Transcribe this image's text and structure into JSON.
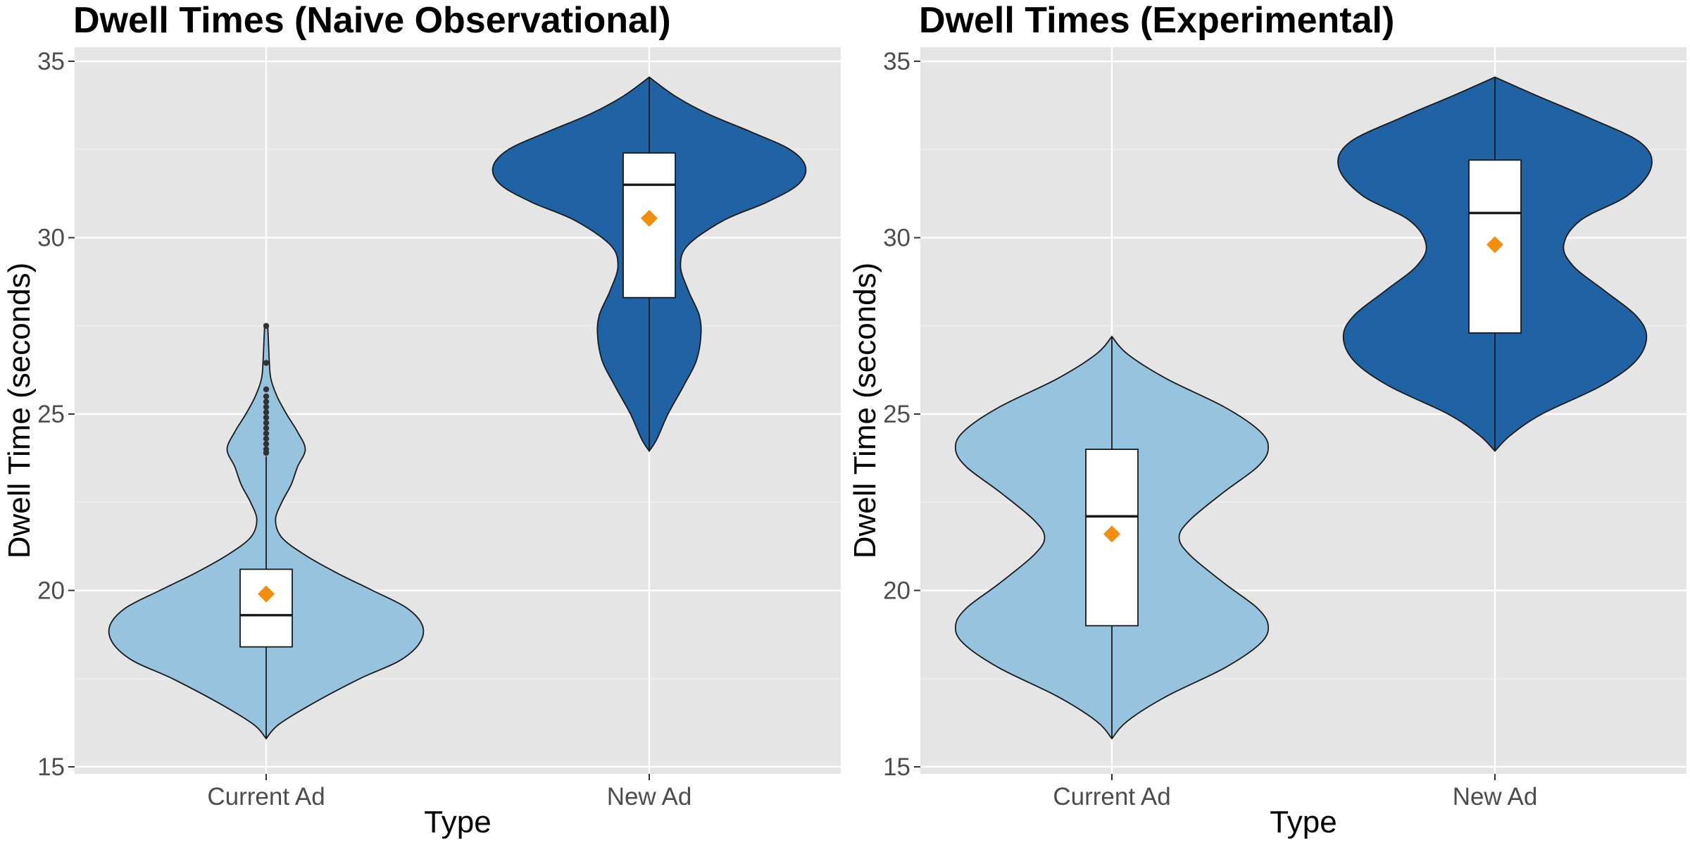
{
  "chart_data": [
    {
      "type": "violin",
      "title": "Dwell Times (Naive Observational)",
      "xlabel": "Type",
      "ylabel": "Dwell Time (seconds)",
      "categories": [
        "Current Ad",
        "New Ad"
      ],
      "ylim": [
        14.8,
        35.4
      ],
      "yticks": [
        15,
        20,
        25,
        30,
        35
      ],
      "grid": true,
      "groups": [
        {
          "category": "Current Ad",
          "fill": "#96c3dd",
          "range": [
            15.8,
            27.5
          ],
          "density": [
            [
              15.8,
              0.0
            ],
            [
              16.2,
              0.08
            ],
            [
              16.8,
              0.3
            ],
            [
              17.5,
              0.6
            ],
            [
              18.0,
              0.85
            ],
            [
              18.5,
              0.98
            ],
            [
              19.0,
              1.0
            ],
            [
              19.5,
              0.9
            ],
            [
              20.0,
              0.68
            ],
            [
              20.5,
              0.45
            ],
            [
              21.0,
              0.25
            ],
            [
              21.5,
              0.1
            ],
            [
              22.0,
              0.06
            ],
            [
              22.5,
              0.1
            ],
            [
              23.0,
              0.16
            ],
            [
              23.5,
              0.2
            ],
            [
              24.0,
              0.25
            ],
            [
              24.5,
              0.2
            ],
            [
              25.0,
              0.13
            ],
            [
              25.5,
              0.07
            ],
            [
              26.0,
              0.03
            ],
            [
              26.5,
              0.02
            ],
            [
              27.0,
              0.015
            ],
            [
              27.5,
              0.01
            ]
          ],
          "box": {
            "q1": 18.4,
            "median": 19.3,
            "q3": 20.6,
            "whisker_low": 15.8,
            "whisker_high": 23.8
          },
          "mean": 19.9,
          "outliers": [
            23.9,
            24.0,
            24.15,
            24.3,
            24.45,
            24.6,
            24.75,
            24.9,
            25.05,
            25.2,
            25.35,
            25.5,
            25.7,
            26.45,
            27.5
          ]
        },
        {
          "category": "New Ad",
          "fill": "#1f63a5",
          "range": [
            23.95,
            34.55
          ],
          "density": [
            [
              23.95,
              0.0
            ],
            [
              24.3,
              0.05
            ],
            [
              25.0,
              0.12
            ],
            [
              25.8,
              0.22
            ],
            [
              26.5,
              0.3
            ],
            [
              27.2,
              0.33
            ],
            [
              27.8,
              0.32
            ],
            [
              28.5,
              0.25
            ],
            [
              29.2,
              0.2
            ],
            [
              29.8,
              0.25
            ],
            [
              30.5,
              0.48
            ],
            [
              31.0,
              0.75
            ],
            [
              31.5,
              0.95
            ],
            [
              32.0,
              1.0
            ],
            [
              32.5,
              0.9
            ],
            [
              33.0,
              0.65
            ],
            [
              33.5,
              0.38
            ],
            [
              34.0,
              0.17
            ],
            [
              34.55,
              0.0
            ]
          ],
          "box": {
            "q1": 28.3,
            "median": 31.5,
            "q3": 32.4,
            "whisker_low": 23.95,
            "whisker_high": 34.55
          },
          "mean": 30.55,
          "outliers": []
        }
      ]
    },
    {
      "type": "violin",
      "title": "Dwell Times (Experimental)",
      "xlabel": "Type",
      "ylabel": "Dwell Time (seconds)",
      "categories": [
        "Current Ad",
        "New Ad"
      ],
      "ylim": [
        14.8,
        35.4
      ],
      "yticks": [
        15,
        20,
        25,
        30,
        35
      ],
      "grid": true,
      "groups": [
        {
          "category": "Current Ad",
          "fill": "#96c3dd",
          "range": [
            15.8,
            27.2
          ],
          "density": [
            [
              15.8,
              0.0
            ],
            [
              16.3,
              0.1
            ],
            [
              17.0,
              0.35
            ],
            [
              17.8,
              0.72
            ],
            [
              18.5,
              0.95
            ],
            [
              19.0,
              1.0
            ],
            [
              19.5,
              0.93
            ],
            [
              20.2,
              0.72
            ],
            [
              21.0,
              0.5
            ],
            [
              21.5,
              0.43
            ],
            [
              22.0,
              0.5
            ],
            [
              22.8,
              0.72
            ],
            [
              23.5,
              0.93
            ],
            [
              24.0,
              1.0
            ],
            [
              24.5,
              0.95
            ],
            [
              25.2,
              0.72
            ],
            [
              26.0,
              0.35
            ],
            [
              26.7,
              0.1
            ],
            [
              27.2,
              0.0
            ]
          ],
          "box": {
            "q1": 19.0,
            "median": 22.1,
            "q3": 24.0,
            "whisker_low": 15.8,
            "whisker_high": 27.2
          },
          "mean": 21.6,
          "outliers": []
        },
        {
          "category": "New Ad",
          "fill": "#1f63a5",
          "range": [
            23.95,
            34.55
          ],
          "density": [
            [
              23.95,
              0.0
            ],
            [
              24.4,
              0.1
            ],
            [
              25.0,
              0.3
            ],
            [
              25.8,
              0.68
            ],
            [
              26.5,
              0.9
            ],
            [
              27.2,
              0.97
            ],
            [
              27.8,
              0.9
            ],
            [
              28.5,
              0.7
            ],
            [
              29.2,
              0.5
            ],
            [
              29.8,
              0.44
            ],
            [
              30.5,
              0.55
            ],
            [
              31.2,
              0.85
            ],
            [
              32.0,
              1.0
            ],
            [
              32.7,
              0.93
            ],
            [
              33.4,
              0.6
            ],
            [
              34.0,
              0.28
            ],
            [
              34.55,
              0.0
            ]
          ],
          "box": {
            "q1": 27.3,
            "median": 30.7,
            "q3": 32.2,
            "whisker_low": 23.95,
            "whisker_high": 34.55
          },
          "mean": 29.8,
          "outliers": []
        }
      ]
    }
  ],
  "style": {
    "mean_marker_color": "#f28e0c",
    "panel_background": "#e5e5e5",
    "mean_marker": "orange-diamond"
  }
}
